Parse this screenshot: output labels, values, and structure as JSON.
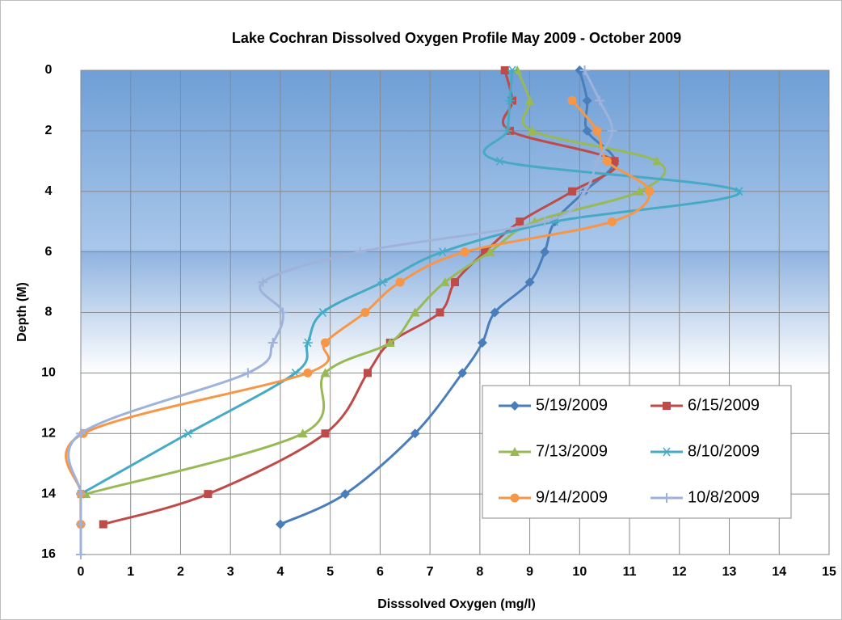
{
  "chart_data": {
    "type": "line",
    "title": "Lake Cochran Dissolved Oxygen Profile  May 2009 - October 2009",
    "x_label": "Disssolved Oxygen (mg/l)",
    "y_label": "Depth (M)",
    "y": [
      0,
      1,
      2,
      3,
      4,
      5,
      6,
      7,
      8,
      9,
      10,
      12,
      14,
      15,
      16
    ],
    "series": [
      {
        "name": "5/19/2009",
        "color": "#4a7ebb",
        "marker": "diamond",
        "values": [
          10.0,
          10.15,
          10.15,
          10.7,
          10.1,
          9.5,
          9.3,
          9.0,
          8.3,
          8.05,
          7.65,
          6.7,
          5.3,
          4.0,
          null
        ]
      },
      {
        "name": "6/15/2009",
        "color": "#be4b48",
        "marker": "square",
        "values": [
          8.5,
          8.65,
          8.6,
          10.7,
          9.85,
          8.8,
          8.1,
          7.5,
          7.2,
          6.2,
          5.75,
          4.9,
          2.55,
          0.45,
          null
        ]
      },
      {
        "name": "7/13/2009",
        "color": "#98b954",
        "marker": "triangle",
        "values": [
          8.75,
          9.0,
          9.05,
          11.55,
          11.2,
          9.1,
          8.2,
          7.3,
          6.7,
          6.2,
          4.9,
          4.45,
          0.1,
          null,
          null
        ]
      },
      {
        "name": "8/10/2009",
        "color": "#46aac5",
        "marker": "star",
        "values": [
          8.65,
          8.6,
          8.55,
          8.4,
          13.2,
          9.5,
          7.25,
          6.05,
          4.85,
          4.55,
          4.3,
          2.15,
          0,
          null,
          null
        ]
      },
      {
        "name": "9/14/2009",
        "color": "#f79646",
        "marker": "circle",
        "values": [
          null,
          9.85,
          10.35,
          10.55,
          11.4,
          10.65,
          7.7,
          6.4,
          5.7,
          4.9,
          4.55,
          0.05,
          0,
          0,
          null
        ]
      },
      {
        "name": "10/8/2009",
        "color": "#9fb2d9",
        "marker": "plus",
        "values": [
          10.1,
          10.4,
          10.65,
          10.35,
          10.1,
          9.3,
          5.6,
          3.65,
          4.05,
          3.85,
          3.35,
          0,
          0,
          0,
          0
        ]
      }
    ],
    "xlim": [
      0,
      15
    ],
    "xticks": [
      0,
      1,
      2,
      3,
      4,
      5,
      6,
      7,
      8,
      9,
      10,
      11,
      12,
      13,
      14,
      15
    ],
    "ylim": [
      0,
      16
    ],
    "yticks": [
      0,
      2,
      4,
      6,
      8,
      10,
      12,
      14,
      16
    ],
    "inverted_y": true,
    "grid": true,
    "legend": "lower right"
  }
}
